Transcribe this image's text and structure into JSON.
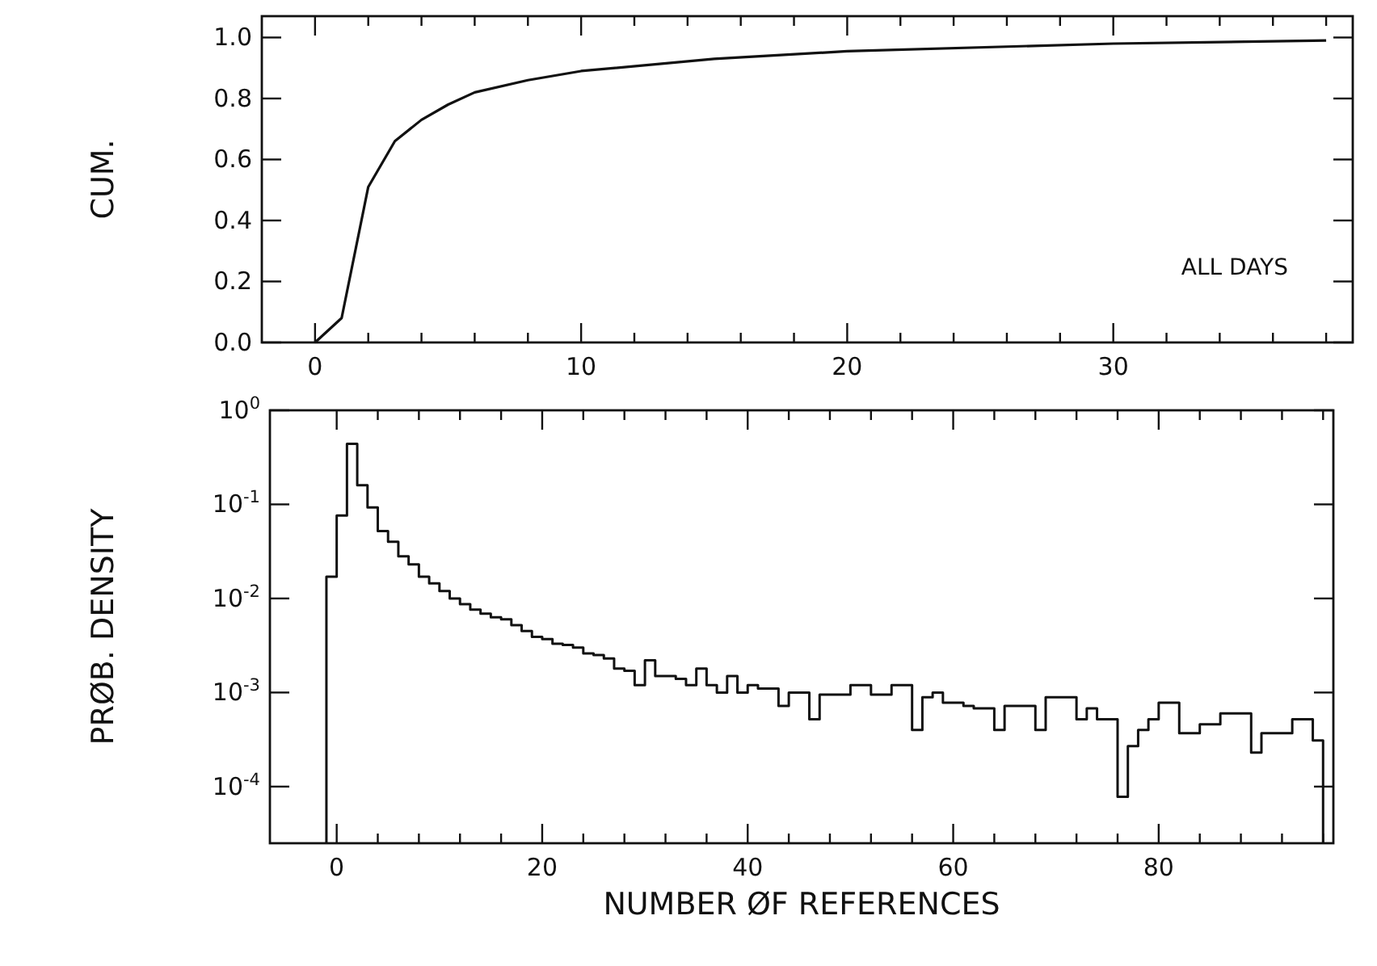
{
  "chart_data": [
    {
      "type": "line",
      "ylabel": "CUM.",
      "annotations": [
        "ALL DAYS"
      ],
      "xlim": [
        -2,
        39
      ],
      "ylim": [
        0,
        1.07
      ],
      "xticks": [
        0,
        {
          "value": 2,
          "label": null
        },
        {
          "value": 4,
          "label": null
        },
        {
          "value": 6,
          "label": null
        },
        {
          "value": 8,
          "label": null
        },
        10,
        {
          "value": 12,
          "label": null
        },
        {
          "value": 14,
          "label": null
        },
        {
          "value": 16,
          "label": null
        },
        {
          "value": 18,
          "label": null
        },
        20,
        {
          "value": 22,
          "label": null
        },
        {
          "value": 24,
          "label": null
        },
        {
          "value": 26,
          "label": null
        },
        {
          "value": 28,
          "label": null
        },
        30,
        {
          "value": 32,
          "label": null
        },
        {
          "value": 34,
          "label": null
        },
        {
          "value": 36,
          "label": null
        },
        {
          "value": 38,
          "label": null
        }
      ],
      "yticks": [
        {
          "value": 0,
          "label": "0.0"
        },
        {
          "value": 0.2,
          "label": "0.2"
        },
        {
          "value": 0.4,
          "label": "0.4"
        },
        {
          "value": 0.6,
          "label": "0.6"
        },
        {
          "value": 0.8,
          "label": "0.8"
        },
        {
          "value": 1,
          "label": "1.0"
        }
      ],
      "x": [
        0,
        1,
        2,
        3,
        4,
        5,
        6,
        8,
        10,
        15,
        20,
        30,
        38
      ],
      "series": [
        {
          "color": "#111111",
          "values": [
            0,
            0.08,
            0.51,
            0.66,
            0.73,
            0.78,
            0.82,
            0.86,
            0.89,
            0.93,
            0.955,
            0.98,
            0.99
          ]
        }
      ]
    },
    {
      "type": "histogram",
      "xlabel": "NUMBER ØF REFERENCES",
      "ylabel": "PRØB. DENSITY",
      "log": "y",
      "xlim": [
        -6.5,
        97
      ],
      "ylim": [
        2.5e-05,
        1
      ],
      "xticks": [
        0,
        {
          "value": 4,
          "label": null
        },
        {
          "value": 8,
          "label": null
        },
        {
          "value": 12,
          "label": null
        },
        {
          "value": 16,
          "label": null
        },
        20,
        {
          "value": 24,
          "label": null
        },
        {
          "value": 28,
          "label": null
        },
        {
          "value": 32,
          "label": null
        },
        {
          "value": 36,
          "label": null
        },
        40,
        {
          "value": 44,
          "label": null
        },
        {
          "value": 48,
          "label": null
        },
        {
          "value": 52,
          "label": null
        },
        {
          "value": 56,
          "label": null
        },
        60,
        {
          "value": 64,
          "label": null
        },
        {
          "value": 68,
          "label": null
        },
        {
          "value": 72,
          "label": null
        },
        {
          "value": 76,
          "label": null
        },
        80,
        {
          "value": 84,
          "label": null
        },
        {
          "value": 88,
          "label": null
        },
        {
          "value": 92,
          "label": null
        },
        {
          "value": 96,
          "label": null
        }
      ],
      "yticks": [
        {
          "value": 1,
          "label": "10$^{0}$"
        },
        {
          "value": 0.1,
          "label": "10$^{-1}$"
        },
        {
          "value": 0.01,
          "label": "10$^{-2}$"
        },
        {
          "value": 0.001,
          "label": "10$^{-3}$"
        },
        {
          "value": 0.0001,
          "label": "10$^{-4}$"
        }
      ],
      "bins": [
        -1,
        0,
        1,
        2,
        3,
        4,
        5,
        6,
        7,
        8,
        9,
        10,
        11,
        12,
        13,
        14,
        15,
        16,
        17,
        18,
        19,
        20,
        21,
        22,
        23,
        24,
        25,
        26,
        27,
        28,
        29,
        30,
        31,
        32,
        33,
        34,
        35,
        36,
        37,
        38,
        39,
        40,
        41,
        42,
        43,
        44,
        45,
        46,
        47,
        48,
        49,
        50,
        51,
        52,
        53,
        54,
        55,
        56,
        57,
        58,
        59,
        60,
        61,
        62,
        63,
        64,
        65,
        66,
        67,
        68,
        69,
        70,
        71,
        72,
        73,
        74,
        75,
        76,
        77,
        78,
        79,
        80,
        81,
        82,
        83,
        84,
        85,
        86,
        87,
        88,
        89,
        90,
        91,
        92,
        93,
        94,
        95,
        96
      ],
      "color": "#111111",
      "values": [
        0.017,
        0.076,
        0.44,
        0.16,
        0.093,
        0.052,
        0.04,
        0.028,
        0.023,
        0.017,
        0.0145,
        0.012,
        0.01,
        0.0087,
        0.0076,
        0.0069,
        0.0063,
        0.006,
        0.0052,
        0.0045,
        0.0039,
        0.0037,
        0.0033,
        0.0032,
        0.003,
        0.0026,
        0.0025,
        0.0023,
        0.0018,
        0.0017,
        0.0012,
        0.0022,
        0.0015,
        0.0015,
        0.0014,
        0.0012,
        0.0018,
        0.0012,
        0.001,
        0.0015,
        0.001,
        0.0012,
        0.0011,
        0.0011,
        0.00072,
        0.001,
        0.001,
        0.00052,
        0.00095,
        0.00095,
        0.00095,
        0.0012,
        0.0012,
        0.00095,
        0.00095,
        0.0012,
        0.0012,
        0.0004,
        0.00089,
        0.001,
        0.00078,
        0.00078,
        0.00072,
        0.00068,
        0.00068,
        0.0004,
        0.00072,
        0.00072,
        0.00072,
        0.0004,
        0.00089,
        0.00089,
        0.00089,
        0.00052,
        0.00068,
        0.00052,
        0.00052,
        7.8e-05,
        0.00027,
        0.0004,
        0.00052,
        0.00078,
        0.00078,
        0.00037,
        0.00037,
        0.00046,
        0.00046,
        0.0006,
        0.0006,
        0.0006,
        0.00023,
        0.00037,
        0.00037,
        0.00037,
        0.00052,
        0.00052,
        0.00031
      ]
    }
  ]
}
